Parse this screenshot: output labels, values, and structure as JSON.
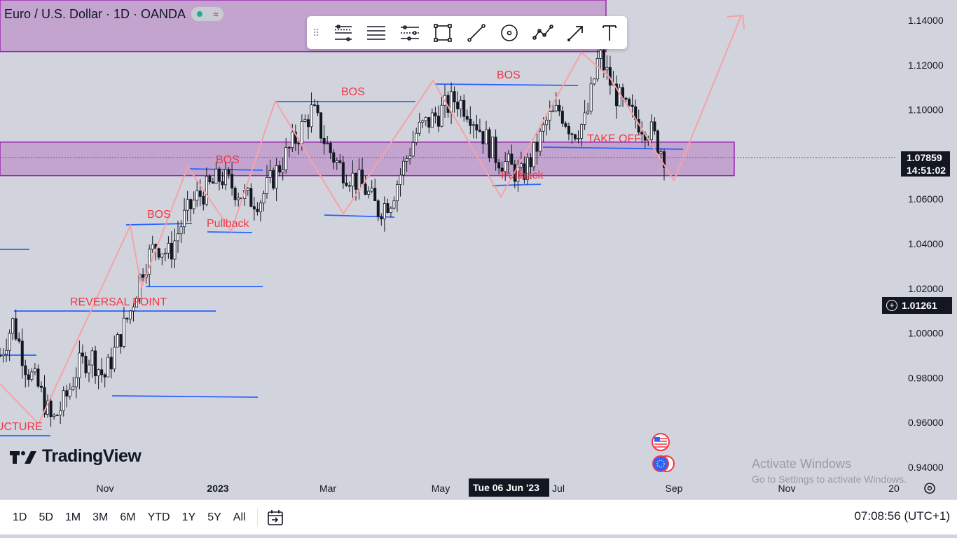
{
  "header": {
    "title": "Euro / U.S. Dollar · 1D · OANDA",
    "status_dot_color": "#22ab94",
    "indicator_icon": "wave-icon"
  },
  "toolbar": {
    "tools": [
      {
        "name": "fib-retracement-icon"
      },
      {
        "name": "horizontal-lines-icon"
      },
      {
        "name": "parallel-channel-icon"
      },
      {
        "name": "rectangle-icon"
      },
      {
        "name": "trend-line-icon"
      },
      {
        "name": "circle-target-icon"
      },
      {
        "name": "path-icon"
      },
      {
        "name": "arrow-icon"
      },
      {
        "name": "text-icon"
      }
    ]
  },
  "watermark": {
    "text": "TradingView"
  },
  "windows": {
    "line1": "Activate Windows",
    "line2": "Go to Settings to activate Windows."
  },
  "price_tags": {
    "current_price": "1.07859",
    "countdown": "14:51:02",
    "crosshair_price": "1.01261",
    "crosshair_date": "Tue 06 Jun '23"
  },
  "chart_data": {
    "type": "candlestick",
    "symbol": "EURUSD",
    "timeframe": "1D",
    "ylim": [
      0.93,
      1.15
    ],
    "y_ticks": [
      "1.14000",
      "1.12000",
      "1.10000",
      "1.08000",
      "1.06000",
      "1.04000",
      "1.02000",
      "1.00000",
      "0.98000",
      "0.96000",
      "0.94000"
    ],
    "x_ticks": [
      "Nov",
      "2023",
      "Mar",
      "May",
      "Jul",
      "Sep",
      "Nov",
      "20"
    ],
    "grid": false,
    "series_close_path": [
      0.99,
      1.005,
      0.985,
      0.975,
      0.96,
      0.97,
      0.985,
      0.99,
      0.98,
      0.995,
      1.01,
      1.03,
      1.04,
      1.035,
      1.05,
      1.06,
      1.065,
      1.07,
      1.065,
      1.06,
      1.06,
      1.07,
      1.08,
      1.09,
      1.1,
      1.085,
      1.075,
      1.07,
      1.065,
      1.055,
      1.06,
      1.075,
      1.09,
      1.095,
      1.1,
      1.105,
      1.1,
      1.09,
      1.08,
      1.075,
      1.07,
      1.08,
      1.095,
      1.1,
      1.09,
      1.095,
      1.125,
      1.11,
      1.1,
      1.095,
      1.09,
      1.08
    ],
    "annotations": [
      {
        "text": "REVERSAL POINT",
        "color": "#f23645"
      },
      {
        "text": "BOS",
        "color": "#f23645"
      },
      {
        "text": "BOS",
        "color": "#f23645"
      },
      {
        "text": "BOS",
        "color": "#f23645"
      },
      {
        "text": "BOS",
        "color": "#f23645"
      },
      {
        "text": "Pullback",
        "color": "#f23645"
      },
      {
        "text": "Pullback",
        "color": "#f23645"
      },
      {
        "text": "TAKE OFF",
        "color": "#f23645"
      },
      {
        "text": "UCTURE",
        "color": "#f23645"
      }
    ],
    "zones": [
      {
        "from": 1.0705,
        "to": 1.0855,
        "color": "#9c27b0"
      },
      {
        "from": 1.126,
        "to": 1.15,
        "color": "#9c27b0"
      }
    ],
    "colors": {
      "up": "#131722",
      "down": "#131722",
      "structure_lines": "#2962ff",
      "swing_path": "#f7a1a8"
    }
  },
  "bottom_bar": {
    "timeframes": [
      "1D",
      "5D",
      "1M",
      "3M",
      "6M",
      "YTD",
      "1Y",
      "5Y",
      "All"
    ],
    "clock": "07:08:56 (UTC+1)"
  }
}
